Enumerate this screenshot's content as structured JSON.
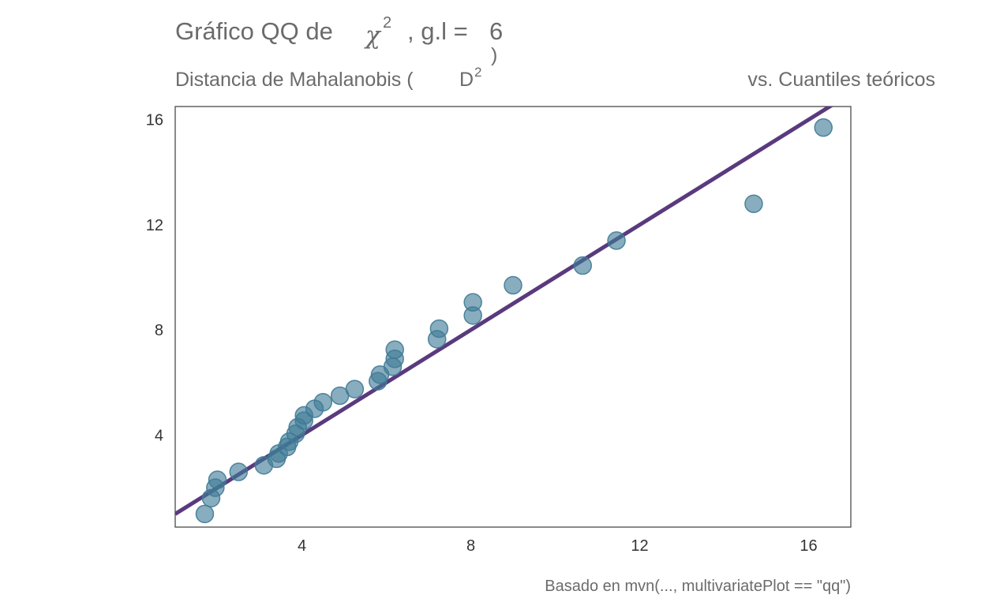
{
  "chart_data": {
    "type": "scatter",
    "title": {
      "prefix": "Gráfico QQ de",
      "symbol": "χ",
      "symbol_sup": "2",
      "middle": ", g.l =",
      "df": "6"
    },
    "subtitle": {
      "left": "Distancia de Mahalanobis (",
      "d": "D",
      "d_sup": "2",
      "close": ")",
      "right": "vs. Cuantiles teóricos"
    },
    "caption": "Basado en mvn(..., multivariatePlot == \"qq\")",
    "xlim": [
      1.0,
      17.0
    ],
    "ylim": [
      0.5,
      16.5
    ],
    "x_ticks": [
      "4",
      "8",
      "12",
      "16"
    ],
    "y_ticks": [
      "4",
      "8",
      "12",
      "16"
    ],
    "grid": false,
    "point_color": "#3f7a96",
    "line_color": "#5a3a7e",
    "reference_line": {
      "slope": 1.0,
      "intercept": 0.0
    },
    "points": [
      {
        "x": 1.7,
        "y": 1.0
      },
      {
        "x": 1.85,
        "y": 1.6
      },
      {
        "x": 1.95,
        "y": 2.0
      },
      {
        "x": 2.0,
        "y": 2.3
      },
      {
        "x": 2.5,
        "y": 2.6
      },
      {
        "x": 3.1,
        "y": 2.85
      },
      {
        "x": 3.4,
        "y": 3.1
      },
      {
        "x": 3.45,
        "y": 3.3
      },
      {
        "x": 3.65,
        "y": 3.55
      },
      {
        "x": 3.7,
        "y": 3.75
      },
      {
        "x": 3.85,
        "y": 4.05
      },
      {
        "x": 3.9,
        "y": 4.3
      },
      {
        "x": 4.05,
        "y": 4.55
      },
      {
        "x": 4.05,
        "y": 4.75
      },
      {
        "x": 4.3,
        "y": 5.0
      },
      {
        "x": 4.5,
        "y": 5.25
      },
      {
        "x": 4.9,
        "y": 5.5
      },
      {
        "x": 5.25,
        "y": 5.75
      },
      {
        "x": 5.8,
        "y": 6.05
      },
      {
        "x": 5.85,
        "y": 6.3
      },
      {
        "x": 6.15,
        "y": 6.6
      },
      {
        "x": 6.2,
        "y": 6.9
      },
      {
        "x": 6.2,
        "y": 7.25
      },
      {
        "x": 7.2,
        "y": 7.65
      },
      {
        "x": 7.25,
        "y": 8.05
      },
      {
        "x": 8.05,
        "y": 8.55
      },
      {
        "x": 8.05,
        "y": 9.05
      },
      {
        "x": 9.0,
        "y": 9.7
      },
      {
        "x": 10.65,
        "y": 10.45
      },
      {
        "x": 11.45,
        "y": 11.4
      },
      {
        "x": 14.7,
        "y": 12.8
      },
      {
        "x": 16.35,
        "y": 15.7
      }
    ]
  }
}
